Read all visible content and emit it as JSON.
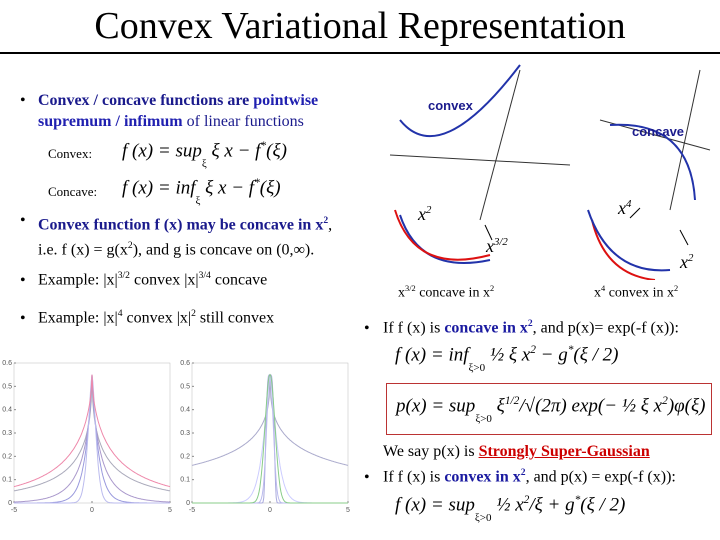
{
  "title": "Convex Variational Representation",
  "left": {
    "bullet1": [
      "Convex / concave",
      "functions are",
      "pointwise",
      "supremum / infimum",
      "of linear functions"
    ],
    "convex_label": "Convex:",
    "convex_formula": [
      "f (x) = sup",
      "ξ",
      "ξ x − f",
      "*",
      "(ξ)"
    ],
    "concave_label": "Concave:",
    "concave_formula": [
      "f (x) = inf",
      "ξ",
      "ξ x − f",
      "*",
      "(ξ)"
    ],
    "bullet2": [
      "Convex function f (x) may be concave in x",
      "2",
      ",",
      "i.e. f (x) = g(x",
      "2",
      "), and g is concave on (0,∞)."
    ],
    "bullet3": [
      "Example: |x|",
      "3/2",
      " convex |x|",
      "3/4",
      " concave"
    ],
    "bullet4": [
      "Example: |x|",
      "4",
      " convex |x|",
      "2",
      " still convex"
    ]
  },
  "plots": [
    {
      "yticks": [
        0.6,
        0.5,
        0.4,
        0.3,
        0.2,
        0.1,
        0
      ],
      "xticks": [
        -5,
        0,
        5
      ]
    },
    {
      "yticks": [
        0.6,
        0.5,
        0.4,
        0.3,
        0.2,
        0.1,
        0
      ],
      "xticks": [
        -5,
        0,
        5
      ]
    }
  ],
  "right": {
    "convex": "convex",
    "concave": "concave",
    "labels": [
      [
        "x",
        "2"
      ],
      [
        "x",
        "4"
      ],
      [
        "x",
        "3/2"
      ],
      [
        "x",
        "2"
      ]
    ],
    "caption1": [
      "x",
      "3/2",
      " concave in x",
      "2"
    ],
    "caption2": [
      "x",
      "4",
      " convex in x",
      "2"
    ],
    "bullet5": [
      "If f (x) is ",
      "concave in x",
      "2",
      ", and p(x)= exp(-f (x)):"
    ],
    "formula1": [
      "f (x) = inf",
      "ξ>0",
      "½ ξ x",
      "2",
      " − g",
      "*",
      "(ξ / 2)"
    ],
    "formula2": [
      "p(x) = sup",
      "ξ>0",
      "ξ",
      "1/2",
      "/√(2π)",
      "exp(− ½ ξ x",
      "2",
      ")φ(ξ)"
    ],
    "say": [
      "We say p(x) is ",
      "Strongly Super-Gaussian"
    ],
    "bullet6": [
      "If f (x) is ",
      "convex in x",
      "2",
      ", and p(x) = exp(-f (x)):"
    ],
    "formula3": [
      "f (x) = sup",
      "ξ>0",
      "½ x",
      "2",
      "/ξ + g",
      "*",
      "(ξ / 2)"
    ]
  }
}
